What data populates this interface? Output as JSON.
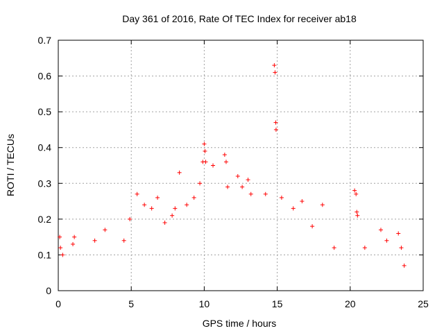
{
  "chart_data": {
    "type": "scatter",
    "title": "Day 361 of 2016, Rate Of TEC Index for receiver ab18",
    "xlabel": "GPS time / hours",
    "ylabel": "ROTI / TECUs",
    "xlim": [
      0,
      25
    ],
    "ylim": [
      0,
      0.7
    ],
    "x_ticks": [
      "0",
      "5",
      "10",
      "15",
      "20",
      "25"
    ],
    "y_ticks": [
      "0",
      "0.1",
      "0.2",
      "0.3",
      "0.4",
      "0.5",
      "0.6",
      "0.7"
    ],
    "grid": true,
    "marker": "plus",
    "color": "#ff0000",
    "series": [
      {
        "points": [
          [
            0.1,
            0.15
          ],
          [
            0.15,
            0.12
          ],
          [
            0.3,
            0.1
          ],
          [
            1.0,
            0.13
          ],
          [
            1.1,
            0.15
          ],
          [
            2.5,
            0.14
          ],
          [
            3.2,
            0.17
          ],
          [
            4.5,
            0.14
          ],
          [
            4.9,
            0.2
          ],
          [
            5.4,
            0.27
          ],
          [
            5.9,
            0.24
          ],
          [
            6.4,
            0.23
          ],
          [
            6.8,
            0.26
          ],
          [
            7.3,
            0.19
          ],
          [
            7.8,
            0.21
          ],
          [
            8.0,
            0.23
          ],
          [
            8.3,
            0.33
          ],
          [
            8.8,
            0.24
          ],
          [
            9.3,
            0.26
          ],
          [
            9.7,
            0.3
          ],
          [
            9.9,
            0.36
          ],
          [
            10.0,
            0.41
          ],
          [
            10.05,
            0.39
          ],
          [
            10.1,
            0.36
          ],
          [
            10.6,
            0.35
          ],
          [
            11.4,
            0.38
          ],
          [
            11.5,
            0.36
          ],
          [
            11.6,
            0.29
          ],
          [
            12.3,
            0.32
          ],
          [
            12.6,
            0.29
          ],
          [
            13.0,
            0.31
          ],
          [
            13.2,
            0.27
          ],
          [
            14.2,
            0.27
          ],
          [
            14.8,
            0.63
          ],
          [
            14.85,
            0.61
          ],
          [
            14.9,
            0.47
          ],
          [
            14.92,
            0.45
          ],
          [
            15.3,
            0.26
          ],
          [
            16.1,
            0.23
          ],
          [
            16.7,
            0.25
          ],
          [
            17.4,
            0.18
          ],
          [
            18.1,
            0.24
          ],
          [
            18.9,
            0.12
          ],
          [
            20.3,
            0.28
          ],
          [
            20.4,
            0.27
          ],
          [
            20.45,
            0.22
          ],
          [
            20.5,
            0.21
          ],
          [
            21.0,
            0.12
          ],
          [
            22.1,
            0.17
          ],
          [
            22.5,
            0.14
          ],
          [
            23.3,
            0.16
          ],
          [
            23.5,
            0.12
          ],
          [
            23.7,
            0.07
          ]
        ]
      }
    ]
  }
}
